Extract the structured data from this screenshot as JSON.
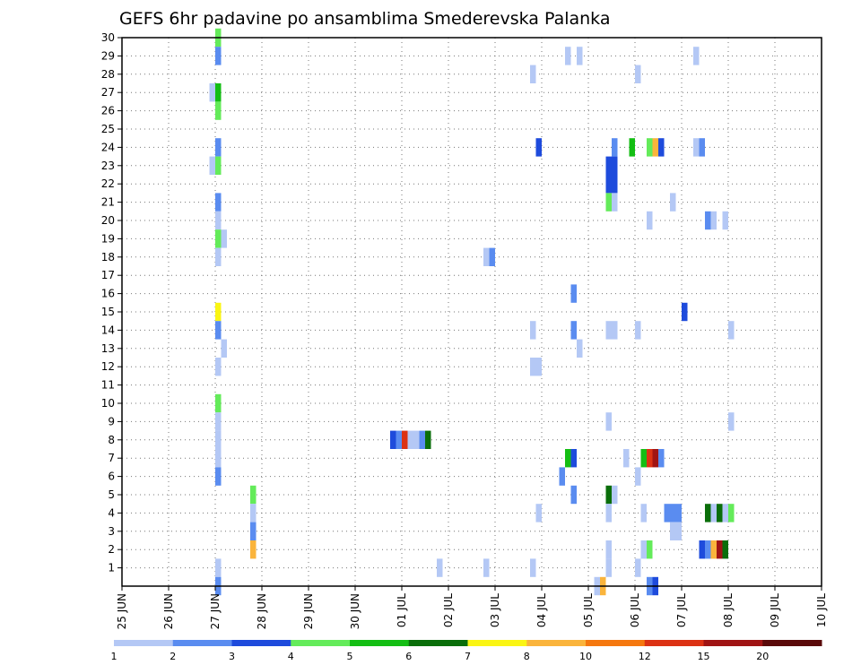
{
  "chart_data": {
    "type": "heatmap",
    "title": "GEFS 6hr padavine po ansamblima Smederevska Palanka",
    "xlabel": "",
    "ylabel": "",
    "x_ticks": [
      "25 JUN",
      "26 JUN",
      "27 JUN",
      "28 JUN",
      "29 JUN",
      "30 JUN",
      "01 JUL",
      "02 JUL",
      "03 JUL",
      "04 JUL",
      "05 JUL",
      "06 JUL",
      "07 JUL",
      "08 JUL",
      "09 JUL",
      "10 JUL"
    ],
    "y_ticks": [
      1,
      2,
      3,
      4,
      5,
      6,
      7,
      8,
      9,
      10,
      11,
      12,
      13,
      14,
      15,
      16,
      17,
      18,
      19,
      20,
      21,
      22,
      23,
      24,
      25,
      26,
      27,
      28,
      29,
      30
    ],
    "xlim": [
      0,
      60
    ],
    "ylim": [
      0,
      30
    ],
    "grid": true,
    "colorbar": {
      "colors": [
        "#b4c8f5",
        "#5a8cf0",
        "#1e4bdc",
        "#64eb5a",
        "#14be14",
        "#0a6e0a",
        "#faf514",
        "#fab43c",
        "#f5780f",
        "#dc3214",
        "#a01414",
        "#5a0a0a"
      ],
      "labels": [
        "1",
        "2",
        "3",
        "4",
        "5",
        "6",
        "7",
        "8",
        "10",
        "12",
        "15",
        "20"
      ]
    },
    "cells": [
      {
        "t": 8,
        "m": 30,
        "v": 4.5
      },
      {
        "t": 8,
        "m": 29,
        "v": 2.5
      },
      {
        "t": 7.5,
        "m": 27,
        "v": 1.5
      },
      {
        "t": 8,
        "m": 27,
        "v": 5.5
      },
      {
        "t": 8,
        "m": 26,
        "v": 4.5
      },
      {
        "t": 8,
        "m": 24,
        "v": 2.5
      },
      {
        "t": 7.5,
        "m": 23,
        "v": 1.5
      },
      {
        "t": 8,
        "m": 23,
        "v": 4.5
      },
      {
        "t": 8,
        "m": 21,
        "v": 2.5
      },
      {
        "t": 8,
        "m": 20,
        "v": 1.5
      },
      {
        "t": 8,
        "m": 19,
        "v": 4.5
      },
      {
        "t": 8.5,
        "m": 19,
        "v": 1.5
      },
      {
        "t": 8,
        "m": 18,
        "v": 1.5
      },
      {
        "t": 8,
        "m": 15,
        "v": 7.5
      },
      {
        "t": 8,
        "m": 14,
        "v": 2.5
      },
      {
        "t": 8.5,
        "m": 13,
        "v": 1.5
      },
      {
        "t": 8,
        "m": 12,
        "v": 1.5
      },
      {
        "t": 8,
        "m": 10,
        "v": 4.5
      },
      {
        "t": 8,
        "m": 9,
        "v": 1.5
      },
      {
        "t": 8,
        "m": 8,
        "v": 1.5
      },
      {
        "t": 8,
        "m": 7,
        "v": 1.5
      },
      {
        "t": 8,
        "m": 6,
        "v": 2.5
      },
      {
        "t": 8,
        "m": 1,
        "v": 1.5
      },
      {
        "t": 8,
        "m": 0,
        "v": 2.5
      },
      {
        "t": 11,
        "m": 5,
        "v": 4.5
      },
      {
        "t": 11,
        "m": 4,
        "v": 1.5
      },
      {
        "t": 11,
        "m": 3,
        "v": 2.5
      },
      {
        "t": 11,
        "m": 2,
        "v": 8.5
      },
      {
        "t": 23,
        "m": 8,
        "v": 3.5
      },
      {
        "t": 23.5,
        "m": 8,
        "v": 2.5
      },
      {
        "t": 24,
        "m": 8,
        "v": 13
      },
      {
        "t": 24.5,
        "m": 8,
        "v": 1.5
      },
      {
        "t": 25,
        "m": 8,
        "v": 1.5
      },
      {
        "t": 25.5,
        "m": 8,
        "v": 2.5
      },
      {
        "t": 26,
        "m": 8,
        "v": 6.5
      },
      {
        "t": 27,
        "m": 1,
        "v": 1.5
      },
      {
        "t": 31,
        "m": 18,
        "v": 1.5
      },
      {
        "t": 31.5,
        "m": 18,
        "v": 2.5
      },
      {
        "t": 31,
        "m": 1,
        "v": 1.5
      },
      {
        "t": 35,
        "m": 28,
        "v": 1.5
      },
      {
        "t": 35.5,
        "m": 24,
        "v": 3.5
      },
      {
        "t": 35,
        "m": 14,
        "v": 1.5
      },
      {
        "t": 35,
        "m": 12,
        "v": 1.5
      },
      {
        "t": 35.5,
        "m": 12,
        "v": 1.5
      },
      {
        "t": 35.5,
        "m": 4,
        "v": 1.5
      },
      {
        "t": 35,
        "m": 1,
        "v": 1.5
      },
      {
        "t": 38,
        "m": 29,
        "v": 1.5
      },
      {
        "t": 39,
        "m": 29,
        "v": 1.5
      },
      {
        "t": 38.5,
        "m": 16,
        "v": 2.5
      },
      {
        "t": 38.5,
        "m": 14,
        "v": 2.5
      },
      {
        "t": 39,
        "m": 13,
        "v": 1.5
      },
      {
        "t": 38,
        "m": 7,
        "v": 5.5
      },
      {
        "t": 38.5,
        "m": 7,
        "v": 3.5
      },
      {
        "t": 37.5,
        "m": 6,
        "v": 2.5
      },
      {
        "t": 38.5,
        "m": 5,
        "v": 2.5
      },
      {
        "t": 40.5,
        "m": 0,
        "v": 1.5
      },
      {
        "t": 41,
        "m": 0,
        "v": 9
      },
      {
        "t": 42,
        "m": 24,
        "v": 2.5
      },
      {
        "t": 41.5,
        "m": 23,
        "v": 3.5
      },
      {
        "t": 42,
        "m": 23,
        "v": 3.5
      },
      {
        "t": 41.5,
        "m": 22,
        "v": 3.5
      },
      {
        "t": 42,
        "m": 22,
        "v": 3.5
      },
      {
        "t": 41.5,
        "m": 21,
        "v": 4.5
      },
      {
        "t": 42,
        "m": 21,
        "v": 1.5
      },
      {
        "t": 41.5,
        "m": 14,
        "v": 1.5
      },
      {
        "t": 42,
        "m": 14,
        "v": 1.5
      },
      {
        "t": 41.5,
        "m": 9,
        "v": 1.5
      },
      {
        "t": 41.5,
        "m": 5,
        "v": 6.5
      },
      {
        "t": 42,
        "m": 5,
        "v": 1.5
      },
      {
        "t": 41.5,
        "m": 4,
        "v": 1.5
      },
      {
        "t": 41.5,
        "m": 2,
        "v": 1.5
      },
      {
        "t": 41.5,
        "m": 1,
        "v": 1.5
      },
      {
        "t": 44,
        "m": 28,
        "v": 1.5
      },
      {
        "t": 43.5,
        "m": 24,
        "v": 5.5
      },
      {
        "t": 44,
        "m": 14,
        "v": 1.5
      },
      {
        "t": 43,
        "m": 7,
        "v": 1.5
      },
      {
        "t": 44,
        "m": 6,
        "v": 1.5
      },
      {
        "t": 44,
        "m": 1,
        "v": 1.5
      },
      {
        "t": 45,
        "m": 24,
        "v": 4.5
      },
      {
        "t": 45.5,
        "m": 24,
        "v": 9
      },
      {
        "t": 46,
        "m": 24,
        "v": 3.5
      },
      {
        "t": 45,
        "m": 20,
        "v": 1.5
      },
      {
        "t": 44.5,
        "m": 7,
        "v": 5.5
      },
      {
        "t": 45,
        "m": 7,
        "v": 13
      },
      {
        "t": 45.5,
        "m": 7,
        "v": 18
      },
      {
        "t": 46,
        "m": 7,
        "v": 2.5
      },
      {
        "t": 44.5,
        "m": 4,
        "v": 1.5
      },
      {
        "t": 44.5,
        "m": 2,
        "v": 1.5
      },
      {
        "t": 45,
        "m": 2,
        "v": 4.5
      },
      {
        "t": 45,
        "m": 0,
        "v": 2.5
      },
      {
        "t": 45.5,
        "m": 0,
        "v": 3.5
      },
      {
        "t": 47,
        "m": 21,
        "v": 1.5
      },
      {
        "t": 48,
        "m": 15,
        "v": 3.5
      },
      {
        "t": 46.5,
        "m": 4,
        "v": 2.5
      },
      {
        "t": 47,
        "m": 4,
        "v": 2.5
      },
      {
        "t": 47.5,
        "m": 4,
        "v": 2.5
      },
      {
        "t": 47,
        "m": 3,
        "v": 1.5
      },
      {
        "t": 47.5,
        "m": 3,
        "v": 1.5
      },
      {
        "t": 49,
        "m": 29,
        "v": 1.5
      },
      {
        "t": 49,
        "m": 24,
        "v": 1.5
      },
      {
        "t": 49.5,
        "m": 24,
        "v": 2.5
      },
      {
        "t": 50,
        "m": 20,
        "v": 2.5
      },
      {
        "t": 50.5,
        "m": 20,
        "v": 1.5
      },
      {
        "t": 51.5,
        "m": 20,
        "v": 1.5
      },
      {
        "t": 52,
        "m": 14,
        "v": 1.5
      },
      {
        "t": 52,
        "m": 9,
        "v": 1.5
      },
      {
        "t": 50,
        "m": 4,
        "v": 6.5
      },
      {
        "t": 50.5,
        "m": 4,
        "v": 1.5
      },
      {
        "t": 51,
        "m": 4,
        "v": 6.5
      },
      {
        "t": 51.5,
        "m": 4,
        "v": 1.5
      },
      {
        "t": 52,
        "m": 4,
        "v": 4.5
      },
      {
        "t": 49.5,
        "m": 2,
        "v": 3.5
      },
      {
        "t": 50,
        "m": 2,
        "v": 2.5
      },
      {
        "t": 50.5,
        "m": 2,
        "v": 8.5
      },
      {
        "t": 51,
        "m": 2,
        "v": 18
      },
      {
        "t": 51.5,
        "m": 2,
        "v": 6.5
      }
    ]
  }
}
